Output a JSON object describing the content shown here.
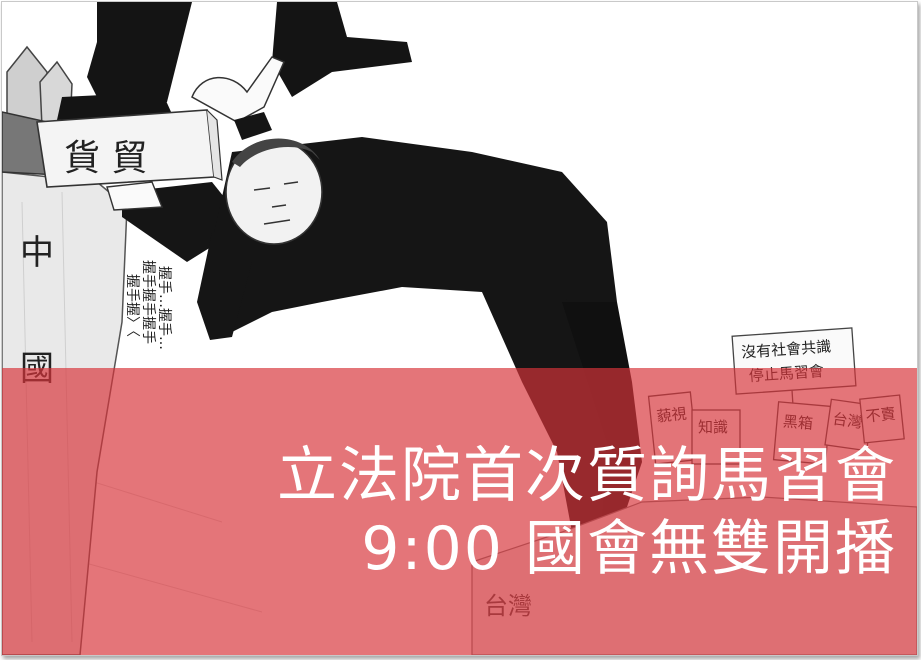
{
  "headline": {
    "line1": "立法院首次質詢馬習會",
    "line2": "9:00 國會無雙開播"
  },
  "cartoon": {
    "box_label": "貨 貿",
    "figure_label": "中國",
    "handshake_text_lines": [
      "握手…握手…",
      "握手握手握手",
      "握手握〉〈"
    ],
    "protest_sign_main_lines": [
      "沒有社會共識",
      "停止馬習會"
    ],
    "protest_sign_small_1": "藐視",
    "protest_sign_small_2": "知識",
    "protest_sign_small_3": "黑箱",
    "protest_sign_small_4": "不賣",
    "protest_sign_small_5": "台灣",
    "ground_text": "台灣"
  },
  "colors": {
    "banner": "#d73439",
    "headline_text": "#ffffff",
    "suit": "#151515"
  }
}
